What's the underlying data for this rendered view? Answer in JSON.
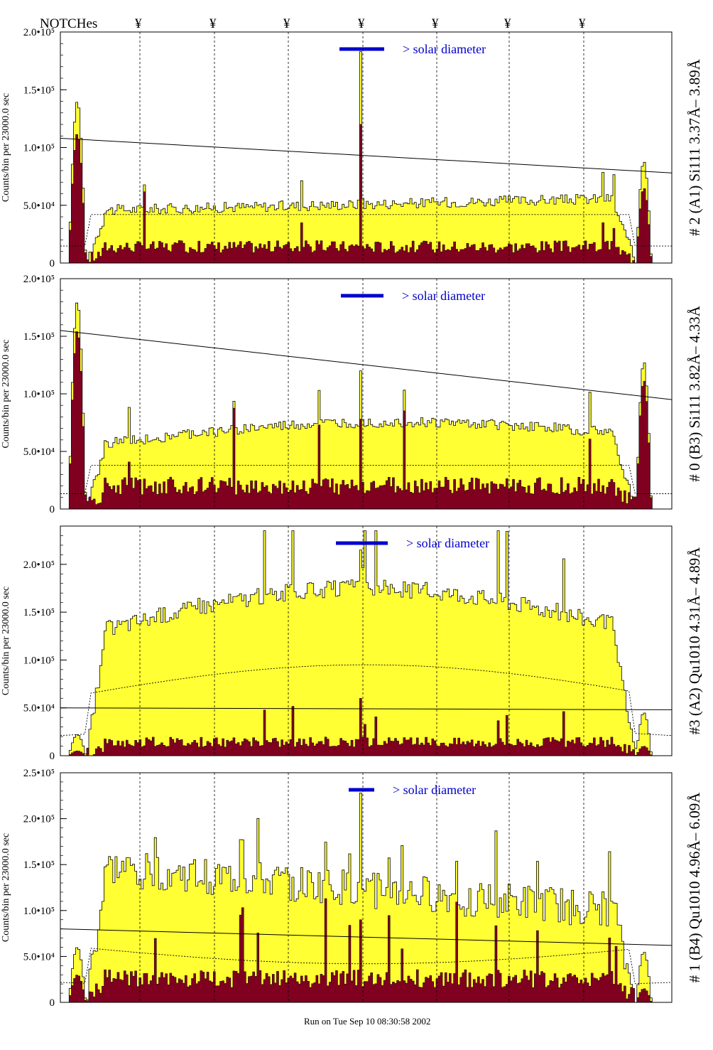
{
  "header": {
    "notches_label": "NOTCHes",
    "notch_mark": "¥"
  },
  "footer": {
    "run_text": "Run on Tue Sep 10 08:30:58 2002"
  },
  "colors": {
    "envelope": "#ffff33",
    "filled": "#800020",
    "marker": "#0000cc",
    "frame": "#000000"
  },
  "chart_data": [
    {
      "type": "area",
      "right_label": "# 2 (A1) Si111  3.37Å– 3.89Å",
      "ylabel": "Counts/bin per  23000.0 sec",
      "ylim": [
        0,
        200000
      ],
      "yticks": [
        {
          "v": 0,
          "t": "0"
        },
        {
          "v": 50000,
          "t": "5.0•10⁴"
        },
        {
          "v": 100000,
          "t": "1.0•10⁵"
        },
        {
          "v": 150000,
          "t": "1.5•10⁵"
        },
        {
          "v": 200000,
          "t": "2.0•10⁵"
        }
      ],
      "solar_text": "> solar diameter",
      "profile": {
        "edge_left_peak": 140000,
        "edge_left_fill": 112000,
        "plateau_left": 45000,
        "plateau_right": 57000,
        "bump_amp": 0,
        "center_spike": 183000,
        "center_fill": 120000,
        "edge_right_peak": 88000,
        "edge_right_fill": 65000,
        "fill_base": 12000,
        "noise": 4500,
        "spike_count": 6,
        "trend_start": 108000,
        "trend_end": 78000,
        "mean_level": 42000,
        "mean_curve": 0
      }
    },
    {
      "type": "area",
      "right_label": "# 0 (B3) Si111  3.82Å– 4.33Å",
      "ylabel": "Counts/bin per  23000.0 sec",
      "ylim": [
        0,
        200000
      ],
      "yticks": [
        {
          "v": 0,
          "t": "0"
        },
        {
          "v": 50000,
          "t": "5.0•10⁴"
        },
        {
          "v": 100000,
          "t": "1.0•10⁵"
        },
        {
          "v": 150000,
          "t": "1.5•10⁵"
        },
        {
          "v": 200000,
          "t": "2.0•10⁵"
        }
      ],
      "solar_text": "> solar diameter",
      "profile": {
        "edge_left_peak": 180000,
        "edge_left_fill": 155000,
        "plateau_left": 52000,
        "plateau_right": 62000,
        "bump_amp": 18000,
        "center_spike": 120000,
        "center_fill": 78000,
        "edge_right_peak": 128000,
        "edge_right_fill": 112000,
        "fill_base": 17000,
        "noise": 4500,
        "spike_count": 5,
        "trend_start": 155000,
        "trend_end": 95000,
        "mean_level": 38000,
        "mean_curve": 0
      }
    },
    {
      "type": "area",
      "right_label": "#3 (A2) Qu1010  4.31Å– 4.89Å",
      "ylabel": "Counts/bin per  23000.0 sec",
      "ylim": [
        0,
        240000
      ],
      "yticks": [
        {
          "v": 0,
          "t": "0"
        },
        {
          "v": 50000,
          "t": "5.0•10⁴"
        },
        {
          "v": 100000,
          "t": "1.0•10⁵"
        },
        {
          "v": 150000,
          "t": "1.5•10⁵"
        },
        {
          "v": 200000,
          "t": "2.0•10⁵"
        }
      ],
      "solar_text": "> solar diameter",
      "profile": {
        "edge_left_peak": 22000,
        "edge_left_fill": 5000,
        "plateau_left": 120000,
        "plateau_right": 120000,
        "bump_amp": 55000,
        "center_spike": 215000,
        "center_fill": 60000,
        "edge_right_peak": 45000,
        "edge_right_fill": 10000,
        "fill_base": 12000,
        "noise": 9000,
        "spike_count": 10,
        "trend_start": 50000,
        "trend_end": 48000,
        "mean_level": 60000,
        "mean_curve": 35000
      }
    },
    {
      "type": "area",
      "right_label": "# 1 (B4) Qu1010 4.96Å– 6.09Å",
      "ylabel": "Counts/bin per  23000.0 sec",
      "ylim": [
        0,
        250000
      ],
      "yticks": [
        {
          "v": 0,
          "t": "0"
        },
        {
          "v": 50000,
          "t": "5.0•10⁴"
        },
        {
          "v": 100000,
          "t": "1.0•10⁵"
        },
        {
          "v": 150000,
          "t": "1.5•10⁵"
        },
        {
          "v": 200000,
          "t": "2.0•10⁵"
        },
        {
          "v": 250000,
          "t": "2.5•10⁵"
        }
      ],
      "solar_text": "> solar diameter",
      "profile": {
        "edge_left_peak": 60000,
        "edge_left_fill": 30000,
        "plateau_left": 150000,
        "plateau_right": 95000,
        "bump_amp": 0,
        "center_spike": 228000,
        "center_fill": 90000,
        "edge_right_peak": 55000,
        "edge_right_fill": 15000,
        "fill_base": 22000,
        "noise": 20000,
        "spike_count": 16,
        "trend_start": 80000,
        "trend_end": 62000,
        "mean_level": 62000,
        "mean_curve": -20000
      }
    }
  ]
}
